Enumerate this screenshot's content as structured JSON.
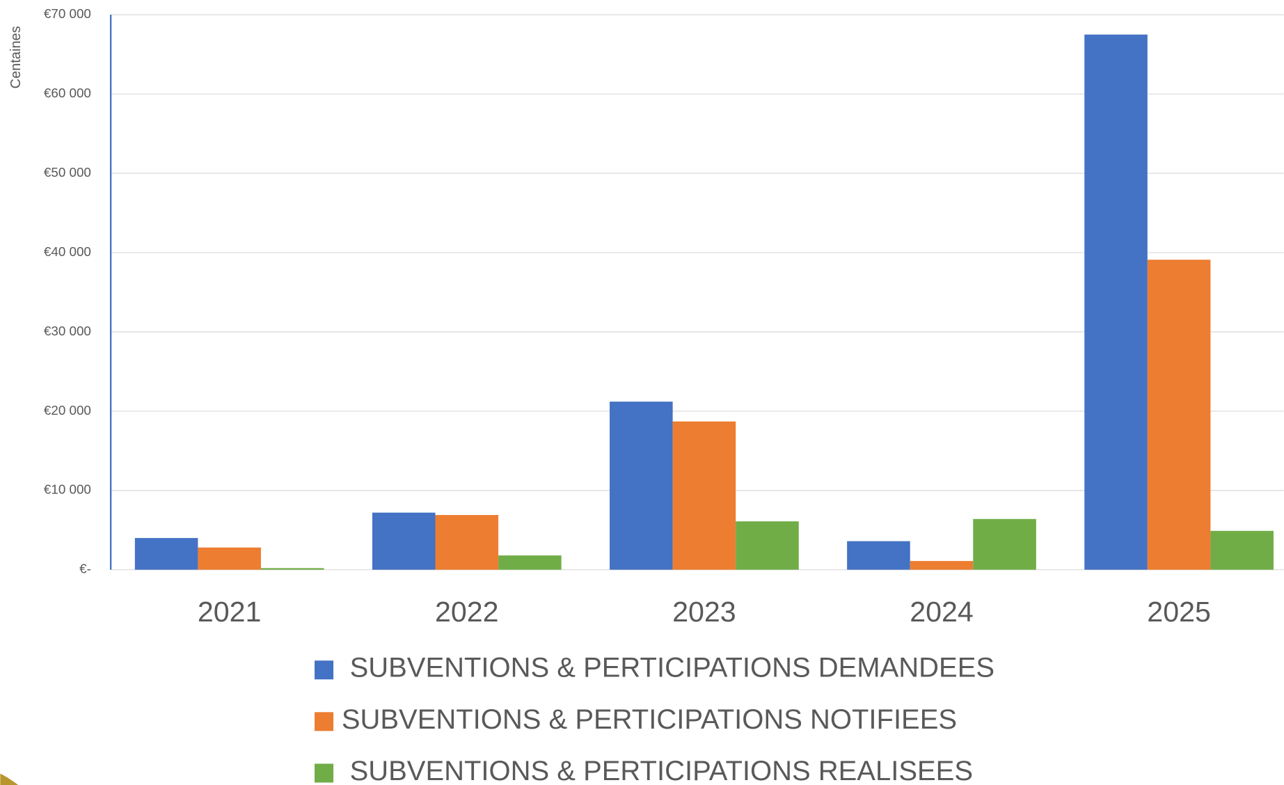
{
  "chart_data": {
    "type": "bar",
    "y_axis_label": "Centaines",
    "categories": [
      "2021",
      "2022",
      "2023",
      "2024",
      "2025"
    ],
    "series": [
      {
        "name": "SUBVENTIONS & PERTICIPATIONS DEMANDEES",
        "color": "#4472c4",
        "values": [
          4000,
          7200,
          21200,
          3600,
          67500
        ]
      },
      {
        "name": "SUBVENTIONS & PERTICIPATIONS NOTIFIEES",
        "color": "#ed7d31",
        "values": [
          2800,
          6900,
          18700,
          1100,
          39100
        ]
      },
      {
        "name": "SUBVENTIONS & PERTICIPATIONS REALISEES",
        "color": "#70ad47",
        "values": [
          200,
          1800,
          6100,
          6400,
          4900
        ]
      }
    ],
    "ylim": [
      0,
      70000
    ],
    "yticks": [
      {
        "value": 0,
        "label": "€-"
      },
      {
        "value": 10000,
        "label": "€10 000"
      },
      {
        "value": 20000,
        "label": "€20 000"
      },
      {
        "value": 30000,
        "label": "€30 000"
      },
      {
        "value": 40000,
        "label": "€40 000"
      },
      {
        "value": 50000,
        "label": "€50 000"
      },
      {
        "value": 60000,
        "label": "€60 000"
      },
      {
        "value": 70000,
        "label": "€70 000"
      }
    ],
    "grid": true,
    "legend": "bottom"
  }
}
